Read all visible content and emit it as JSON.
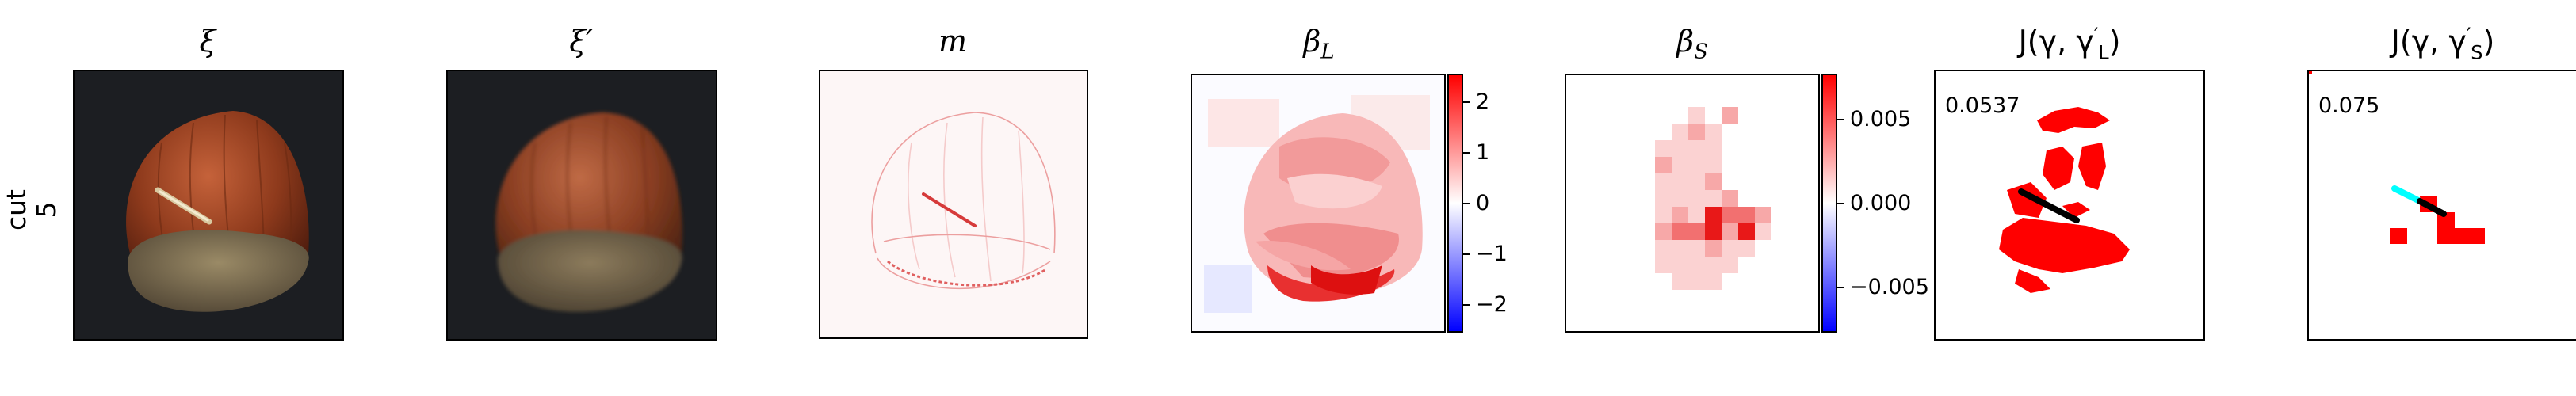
{
  "row_label": "cut\n5",
  "row_label_line1": "cut",
  "row_label_line2": "5",
  "panels": [
    {
      "title": "ξ"
    },
    {
      "title": "ξ′"
    },
    {
      "title": "m"
    },
    {
      "title": "β_L",
      "title_main": "β",
      "title_sub": "L"
    },
    {
      "title": "β_S",
      "title_main": "β",
      "title_sub": "S"
    },
    {
      "title": "J(γ, γ′_L)",
      "title_pre": "J(γ, γ",
      "title_sup": "′",
      "title_sub": "L",
      "title_post": ")",
      "score": "0.0537"
    },
    {
      "title": "J(γ, γ′_S)",
      "title_pre": "J(γ, γ",
      "title_sup": "′",
      "title_sub": "S",
      "title_post": ")",
      "score": "0.075"
    }
  ],
  "colorbar_L": {
    "ticks": [
      "2",
      "1",
      "0",
      "−1",
      "−2"
    ],
    "values": [
      2,
      1,
      0,
      -1,
      -2
    ],
    "range": [
      -2.5,
      2.5
    ]
  },
  "colorbar_S": {
    "ticks": [
      "0.005",
      "0.000",
      "−0.005"
    ],
    "values": [
      0.005,
      0.0,
      -0.005
    ],
    "range": [
      -0.0075,
      0.0075
    ]
  },
  "colors": {
    "positive": "#ff0000",
    "negative": "#0000ff",
    "mid": "#ffffff",
    "segment_large": "#000000",
    "segment_small": "#00ffff"
  }
}
